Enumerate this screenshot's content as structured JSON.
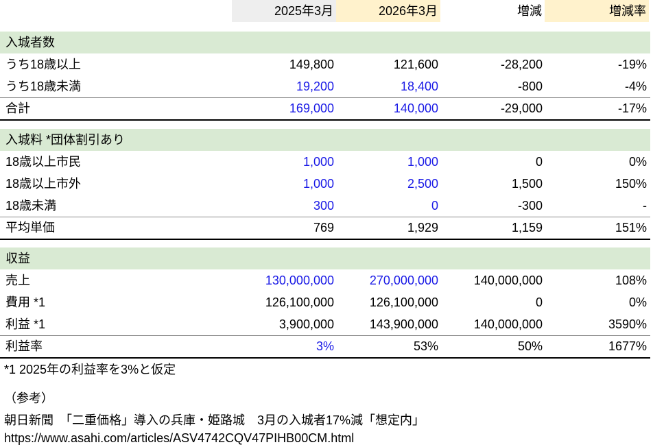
{
  "header": {
    "columns": [
      "2025年3月",
      "2026年3月",
      "増減",
      "増減率"
    ]
  },
  "sections": [
    {
      "title": "入城者数",
      "rows": [
        {
          "label": "うち18歳以上",
          "values": [
            "149,800",
            "121,600",
            "-28,200",
            "-19%"
          ],
          "blue": []
        },
        {
          "label": "うち18歳未満",
          "values": [
            "19,200",
            "18,400",
            "-800",
            "-4%"
          ],
          "blue": [
            0,
            1
          ]
        },
        {
          "label": "合計",
          "values": [
            "169,000",
            "140,000",
            "-29,000",
            "-17%"
          ],
          "blue": [
            0,
            1
          ]
        }
      ]
    },
    {
      "title": "入城料 *団体割引あり",
      "rows": [
        {
          "label": "18歳以上市民",
          "values": [
            "1,000",
            "1,000",
            "0",
            "0%"
          ],
          "blue": [
            0,
            1
          ]
        },
        {
          "label": "18歳以上市外",
          "values": [
            "1,000",
            "2,500",
            "1,500",
            "150%"
          ],
          "blue": [
            0,
            1
          ]
        },
        {
          "label": "18歳未満",
          "values": [
            "300",
            "0",
            "-300",
            "-"
          ],
          "blue": [
            0,
            1
          ]
        },
        {
          "label": "平均単価",
          "values": [
            "769",
            "1,929",
            "1,159",
            "151%"
          ],
          "blue": []
        }
      ]
    },
    {
      "title": "収益",
      "rows": [
        {
          "label": "売上",
          "values": [
            "130,000,000",
            "270,000,000",
            "140,000,000",
            "108%"
          ],
          "blue": [
            0,
            1
          ]
        },
        {
          "label": "費用 *1",
          "values": [
            "126,100,000",
            "126,100,000",
            "0",
            "0%"
          ],
          "blue": []
        },
        {
          "label": "利益 *1",
          "values": [
            "3,900,000",
            "143,900,000",
            "140,000,000",
            "3590%"
          ],
          "blue": []
        },
        {
          "label": "利益率",
          "values": [
            "3%",
            "53%",
            "50%",
            "1677%"
          ],
          "blue": [
            0
          ]
        }
      ]
    }
  ],
  "notes": {
    "footnote": "*1 2025年の利益率を3%と仮定",
    "reference_label": "（参考）",
    "article_title": "朝日新聞　「二重価格」導入の兵庫・姫路城　3月の入城者17%減「想定内」",
    "url": "https://www.asahi.com/articles/ASV4742CQV47PIHB00CM.html"
  }
}
